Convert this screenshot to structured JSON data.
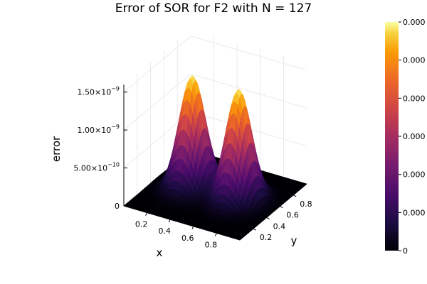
{
  "chart_data": {
    "type": "surface",
    "title": "Error of SOR for F2 with N = 127",
    "xlabel": "x",
    "ylabel": "y",
    "zlabel": "error",
    "x_ticks": [
      "0.2",
      "0.4",
      "0.6",
      "0.8"
    ],
    "x_tick_values": [
      0.2,
      0.4,
      0.6,
      0.8
    ],
    "y_ticks": [
      "0.2",
      "0.4",
      "0.6",
      "0.8"
    ],
    "y_tick_values": [
      0.2,
      0.4,
      0.6,
      0.8
    ],
    "z_ticks": [
      {
        "value": 0,
        "base": "0",
        "exp": ""
      },
      {
        "value": 5e-10,
        "base": "5.00×10",
        "exp": "−10"
      },
      {
        "value": 1e-09,
        "base": "1.00×10",
        "exp": "−9"
      },
      {
        "value": 1.5e-09,
        "base": "1.50×10",
        "exp": "−9"
      }
    ],
    "xlim": [
      0,
      1
    ],
    "ylim": [
      0,
      1
    ],
    "zlim": [
      0,
      1.6e-09
    ],
    "peaks": [
      {
        "x": 0.3,
        "y": 0.5,
        "z": 1.48e-09
      },
      {
        "x": 0.7,
        "y": 0.5,
        "z": 1.48e-09
      }
    ],
    "grid": true,
    "colormap": "inferno",
    "colorbar": {
      "placement": "right",
      "tick_labels": [
        "0",
        "0.000",
        "0.000",
        "0.000",
        "0.000",
        "0.000",
        "0.000"
      ]
    }
  }
}
